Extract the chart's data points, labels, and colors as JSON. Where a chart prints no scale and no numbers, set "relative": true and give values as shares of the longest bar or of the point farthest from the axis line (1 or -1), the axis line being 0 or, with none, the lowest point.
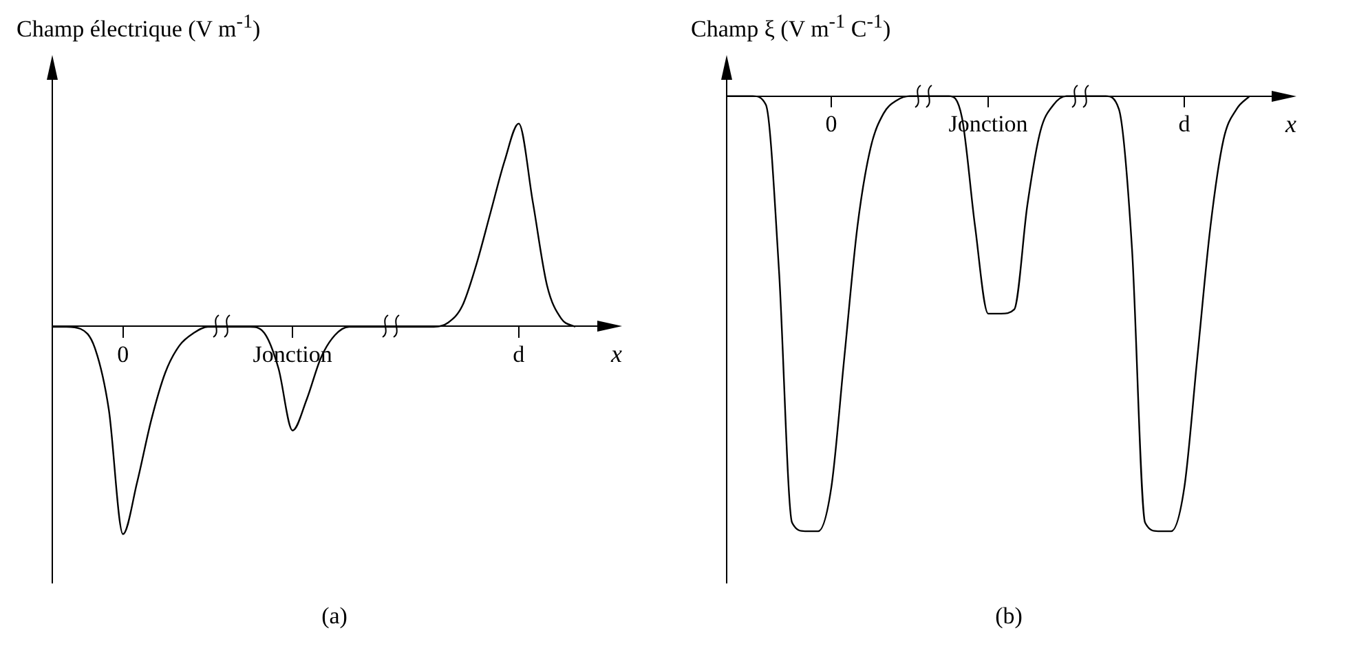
{
  "chart_data": [
    {
      "type": "line",
      "relative": true,
      "ylabel": "Champ électrique (V m$^{-1}$)",
      "xlabel": "x",
      "annotations": [
        "(a)"
      ],
      "legend": false,
      "grid": false,
      "marker": "none",
      "categories": [
        null,
        null,
        null,
        null,
        null,
        "0",
        null,
        null,
        null,
        null,
        null,
        null,
        null,
        null,
        null,
        null,
        null,
        "Jonction",
        null,
        null,
        null,
        null,
        null,
        null,
        null,
        null,
        null,
        null,
        null,
        null,
        null,
        null,
        null,
        "d",
        null,
        null,
        null,
        null
      ],
      "series": [
        {
          "color": "#000000",
          "values": [
            0,
            0,
            -0.01,
            -0.1,
            -0.4,
            -1,
            -0.75,
            -0.45,
            -0.22,
            -0.09,
            -0.03,
            0,
            0,
            0,
            0,
            -0.03,
            -0.2,
            -0.5,
            -0.35,
            -0.15,
            -0.04,
            0,
            0,
            0,
            0,
            0,
            0,
            0,
            0.02,
            0.1,
            0.3,
            0.55,
            0.8,
            0.98,
            0.6,
            0.2,
            0.04,
            0
          ]
        }
      ]
    },
    {
      "type": "line",
      "relative": true,
      "ylabel": "Champ ξ (V m$^{-1}$ C$^{-1}$)",
      "xlabel": "x",
      "annotations": [
        "(b)"
      ],
      "legend": false,
      "grid": false,
      "marker": "none",
      "categories": [
        null,
        null,
        null,
        null,
        null,
        null,
        null,
        null,
        "0",
        null,
        null,
        null,
        null,
        null,
        null,
        null,
        null,
        null,
        null,
        null,
        "Jonction",
        null,
        null,
        null,
        null,
        null,
        null,
        null,
        null,
        null,
        null,
        null,
        null,
        null,
        null,
        "d",
        null,
        null,
        null,
        null,
        null
      ],
      "series": [
        {
          "color": "#000000",
          "values": [
            0,
            0,
            0,
            -0.02,
            -0.4,
            -0.98,
            -1,
            -1,
            -0.9,
            -0.6,
            -0.3,
            -0.12,
            -0.04,
            -0.01,
            0,
            0,
            0,
            0,
            -0.05,
            -0.3,
            -0.5,
            -0.5,
            -0.49,
            -0.25,
            -0.08,
            -0.02,
            0,
            0,
            0,
            0,
            -0.03,
            -0.35,
            -0.98,
            -1,
            -1,
            -0.9,
            -0.6,
            -0.3,
            -0.1,
            -0.03,
            0
          ]
        }
      ]
    }
  ]
}
